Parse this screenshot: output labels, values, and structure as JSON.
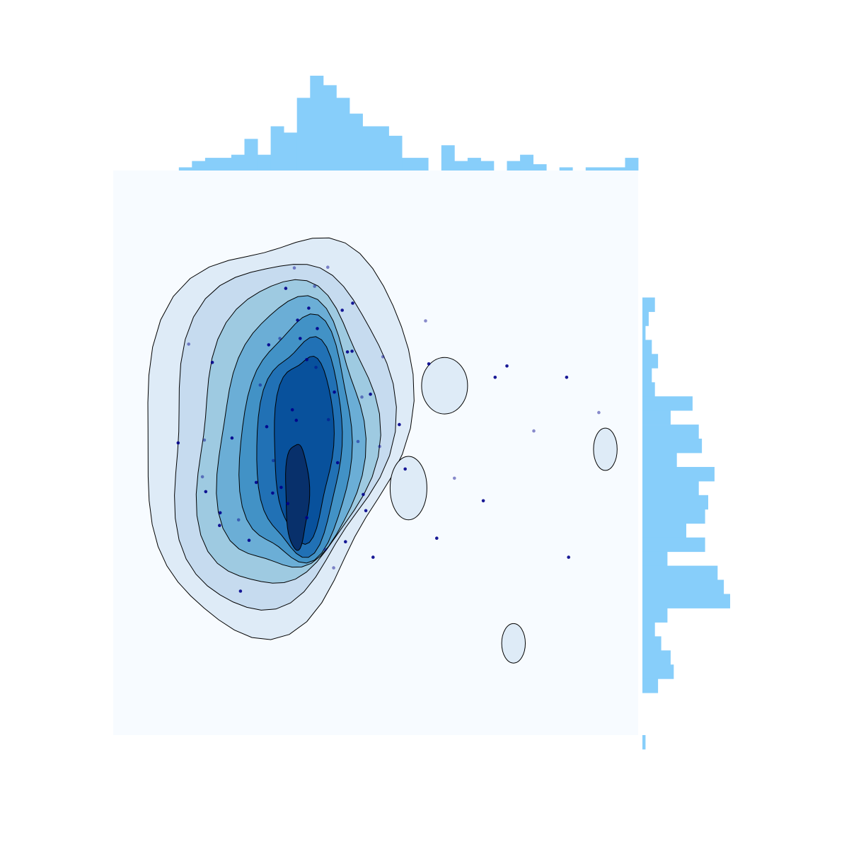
{
  "chart_data": {
    "type": "kde-joint",
    "title": "",
    "xlabel": "",
    "ylabel": "",
    "xlim": [
      -4,
      4
    ],
    "ylim": [
      -4,
      4
    ],
    "grid": false,
    "legend": "none",
    "colors": {
      "background": "#f7fbff",
      "contour_fills": [
        "#deebf7",
        "#c6dbef",
        "#9ecae1",
        "#6baed6",
        "#4292c6",
        "#2171b5",
        "#08519c",
        "#08306b"
      ],
      "contour_line": "#000000",
      "points": "#00008b",
      "histogram": "#87cefa"
    },
    "marginal_x": {
      "bin_edges_start": -3.0,
      "bin_width": 0.2,
      "counts": [
        1,
        3,
        4,
        4,
        5,
        10,
        5,
        14,
        12,
        23,
        30,
        27,
        23,
        18,
        14,
        14,
        11,
        4,
        4,
        0,
        8,
        3,
        4,
        3,
        0,
        3,
        5,
        2,
        0,
        1,
        0,
        1,
        1,
        1,
        4
      ]
    },
    "marginal_y": {
      "bin_edges_start": 2.2,
      "bin_width": -0.2,
      "counts": [
        4,
        2,
        1,
        3,
        5,
        3,
        4,
        16,
        9,
        18,
        19,
        11,
        23,
        18,
        21,
        20,
        14,
        20,
        8,
        24,
        26,
        28,
        8,
        4,
        6,
        9,
        10,
        5,
        0,
        0,
        0,
        1
      ]
    },
    "points": [
      [
        -2.85,
        1.54
      ],
      [
        -2.49,
        1.28
      ],
      [
        -3.01,
        0.14
      ],
      [
        -2.61,
        0.18
      ],
      [
        -2.59,
        -0.55
      ],
      [
        -2.38,
        -1.03
      ],
      [
        -2.09,
        -0.95
      ],
      [
        -1.93,
        -1.24
      ],
      [
        -2.06,
        -1.96
      ],
      [
        -1.76,
        0.96
      ],
      [
        -1.57,
        -0.57
      ],
      [
        -1.37,
        2.33
      ],
      [
        -1.24,
        2.62
      ],
      [
        -1.05,
        1.32
      ],
      [
        -0.89,
        1.76
      ],
      [
        -0.73,
        2.63
      ],
      [
        -0.51,
        2.02
      ],
      [
        -0.36,
        1.44
      ],
      [
        -0.27,
        0.16
      ],
      [
        -0.15,
        -0.82
      ],
      [
        -0.04,
        -1.48
      ],
      [
        0.11,
        1.36
      ],
      [
        0.36,
        0.4
      ],
      [
        0.45,
        -0.23
      ],
      [
        0.76,
        1.87
      ],
      [
        0.81,
        1.26
      ],
      [
        0.93,
        -1.21
      ],
      [
        1.2,
        -0.36
      ],
      [
        1.82,
        1.07
      ],
      [
        2.0,
        1.23
      ],
      [
        2.41,
        0.31
      ],
      [
        2.91,
        1.07
      ],
      [
        2.94,
        -1.48
      ],
      [
        3.4,
        0.57
      ],
      [
        -1.82,
        -0.42
      ],
      [
        -1.66,
        0.37
      ],
      [
        -1.46,
        1.62
      ],
      [
        -1.19,
        1.88
      ],
      [
        -1.05,
        -0.92
      ],
      [
        -0.91,
        1.21
      ],
      [
        -0.63,
        0.86
      ],
      [
        -0.46,
        -1.26
      ],
      [
        -0.21,
        0.79
      ],
      [
        -0.43,
        1.43
      ],
      [
        -1.27,
        0.61
      ],
      [
        -1.56,
        -0.11
      ],
      [
        -0.58,
        -0.14
      ],
      [
        -1.15,
        1.62
      ],
      [
        -0.77,
        -1.37
      ],
      [
        -1.34,
        -0.72
      ],
      [
        -0.35,
        2.12
      ],
      [
        -0.93,
        2.36
      ],
      [
        -2.19,
        0.21
      ],
      [
        -2.37,
        -0.85
      ],
      [
        0.06,
        0.09
      ],
      [
        -0.08,
        0.83
      ],
      [
        -1.21,
        0.46
      ],
      [
        -0.64,
        -1.63
      ],
      [
        -1.02,
        2.05
      ],
      [
        -1.44,
        -0.49
      ],
      [
        -0.72,
        0.47
      ],
      [
        -1.63,
        1.53
      ],
      [
        -0.19,
        -0.59
      ],
      [
        -2.64,
        -0.34
      ],
      [
        1.64,
        -0.68
      ]
    ]
  }
}
